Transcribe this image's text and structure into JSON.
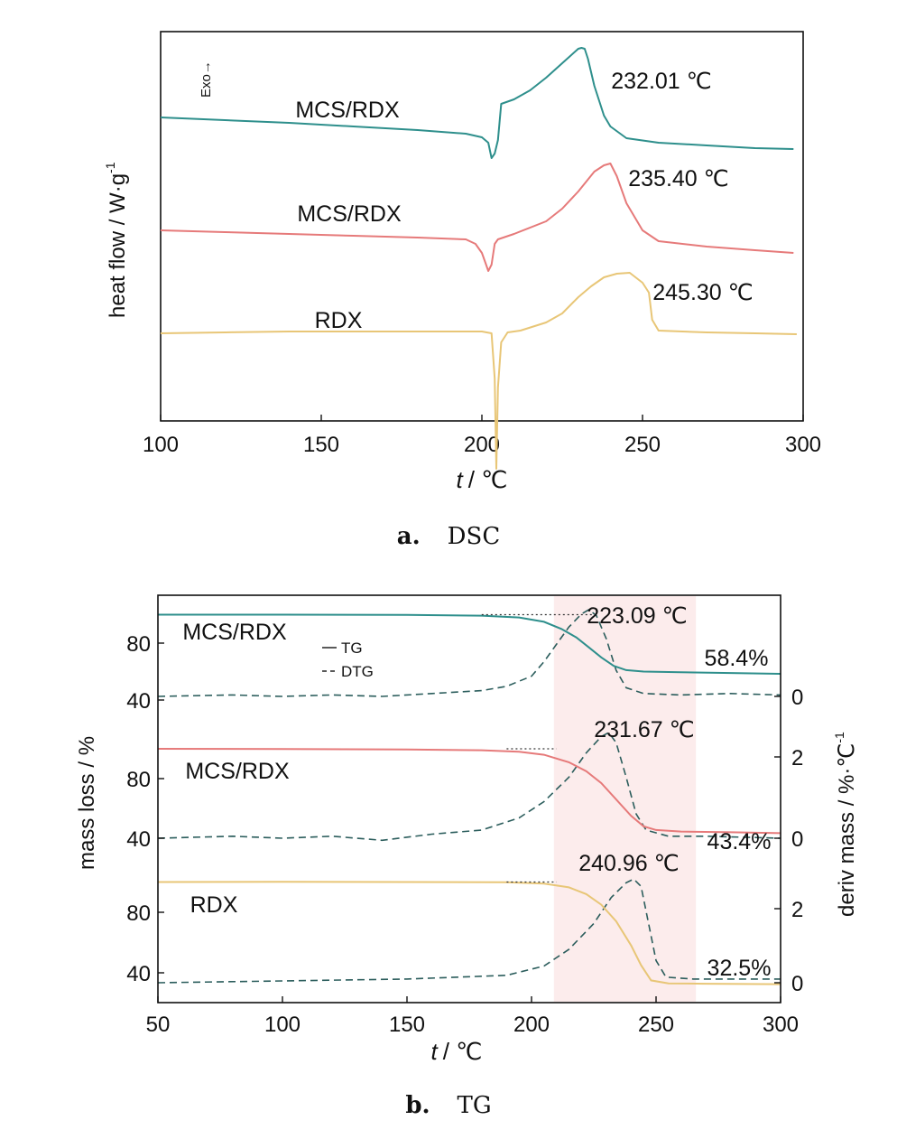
{
  "chart_data": [
    {
      "type": "line",
      "panel_label": "a.",
      "panel_name": "DSC",
      "ylabel": "heat flow / W·g",
      "ylabel_sup": "-1",
      "xlabel_var": "t",
      "xlabel_unit": "/ ℃",
      "exo_label": "Exo→",
      "xlim": [
        100,
        300
      ],
      "xticks": [
        100,
        150,
        200,
        250,
        300
      ],
      "colors": {
        "teal": "#2e8f8c",
        "red": "#e67a7a",
        "yellow": "#e8c677"
      },
      "series": [
        {
          "name": "MCS/RDX",
          "color_key": "teal",
          "peak_label": "232.01 ℃",
          "x": [
            100,
            120,
            140,
            160,
            180,
            195,
            200,
            202,
            203,
            204,
            205,
            206,
            210,
            215,
            220,
            225,
            230,
            231,
            232,
            233,
            235,
            238,
            240,
            245,
            255,
            270,
            285,
            297
          ],
          "y": [
            0.0,
            -0.3,
            -0.6,
            -1.0,
            -1.4,
            -1.8,
            -2.2,
            -2.8,
            -4.5,
            -4.0,
            -2.5,
            1.5,
            2.0,
            3.0,
            4.4,
            6.0,
            7.6,
            7.7,
            7.6,
            6.5,
            3.5,
            0.2,
            -1.0,
            -2.3,
            -2.8,
            -3.1,
            -3.4,
            -3.5
          ]
        },
        {
          "name": "MCS/RDX",
          "color_key": "red",
          "peak_label": "235.40 ℃",
          "x": [
            100,
            120,
            140,
            160,
            180,
            195,
            198,
            200,
            201,
            202,
            203,
            204,
            205,
            210,
            220,
            225,
            230,
            235,
            238,
            240,
            242,
            245,
            250,
            255,
            270,
            285,
            297
          ],
          "y": [
            0.0,
            -0.2,
            -0.4,
            -0.6,
            -0.8,
            -1.0,
            -1.5,
            -2.5,
            -3.5,
            -4.5,
            -3.8,
            -1.5,
            -1.0,
            -0.4,
            1.0,
            2.4,
            4.3,
            6.5,
            7.2,
            7.4,
            6.0,
            3.0,
            0.0,
            -1.2,
            -1.8,
            -2.2,
            -2.5
          ]
        },
        {
          "name": "RDX",
          "color_key": "yellow",
          "peak_label": "245.30 ℃",
          "x": [
            100,
            120,
            140,
            160,
            180,
            200,
            203,
            204,
            204.5,
            205,
            206,
            208,
            212,
            220,
            225,
            230,
            234,
            238,
            242,
            246,
            250,
            252,
            253,
            255,
            270,
            285,
            298
          ],
          "y": [
            0.0,
            0.1,
            0.2,
            0.2,
            0.2,
            0.2,
            0.0,
            -5.0,
            -15.0,
            -6.0,
            -1.0,
            0.1,
            0.3,
            1.2,
            2.2,
            4.0,
            5.2,
            6.2,
            6.6,
            6.7,
            5.6,
            4.5,
            1.5,
            0.3,
            0.1,
            0.0,
            -0.1
          ]
        }
      ]
    },
    {
      "type": "line",
      "panel_label": "b.",
      "panel_name": "TG",
      "ylabel": "mass loss / %",
      "ylabel_right": "deriv mass / %·℃",
      "ylabel_right_sup": "-1",
      "xlabel_var": "t",
      "xlabel_unit": "/ ℃",
      "xlim": [
        50,
        300
      ],
      "xticks": [
        50,
        100,
        150,
        200,
        250,
        300
      ],
      "shaded_region": [
        209,
        266
      ],
      "legend": {
        "tg": "TG",
        "dtg": "DTG"
      },
      "colors": {
        "teal": "#2e8f8c",
        "red": "#e67a7a",
        "yellow": "#e8c677",
        "dtg": "#2b5d5c",
        "shade": "#fcecec"
      },
      "subplots": [
        {
          "name": "MCS/RDX",
          "color_key": "teal",
          "peak_label": "223.09 ℃",
          "residue_label": "58.4%",
          "left_ticks": [
            40,
            80
          ],
          "right_ticks": [
            0
          ],
          "tg": {
            "x": [
              50,
              100,
              150,
              180,
              195,
              205,
              212,
              218,
              223,
              228,
              233,
              238,
              245,
              260,
              280,
              300
            ],
            "y": [
              100.0,
              100.0,
              99.8,
              99.3,
              98.0,
              95.0,
              90.0,
              84.0,
              77.0,
              70.0,
              64.0,
              61.0,
              60.0,
              59.5,
              59.0,
              58.4
            ]
          },
          "dtg": {
            "x": [
              50,
              80,
              100,
              120,
              140,
              160,
              180,
              190,
              200,
              205,
              210,
              215,
              220,
              223,
              226,
              230,
              234,
              238,
              245,
              260,
              280,
              300
            ],
            "y": [
              0.0,
              0.05,
              0.0,
              0.05,
              0.0,
              0.1,
              0.2,
              0.35,
              0.7,
              1.2,
              1.8,
              2.4,
              2.85,
              3.0,
              2.8,
              2.0,
              0.9,
              0.3,
              0.1,
              0.05,
              0.1,
              0.05
            ]
          }
        },
        {
          "name": "MCS/RDX",
          "color_key": "red",
          "peak_label": "231.67 ℃",
          "residue_label": "43.4%",
          "left_ticks": [
            40,
            80
          ],
          "right_ticks": [
            0,
            2
          ],
          "tg": {
            "x": [
              50,
              100,
              150,
              180,
              195,
              205,
              215,
              222,
              228,
              234,
              240,
              245,
              250,
              260,
              280,
              300
            ],
            "y": [
              100.0,
              99.8,
              99.5,
              99.0,
              98.0,
              96.0,
              91.0,
              85.0,
              77.0,
              66.0,
              55.0,
              48.0,
              45.5,
              44.5,
              44.0,
              43.4
            ]
          },
          "dtg": {
            "x": [
              50,
              80,
              100,
              120,
              140,
              160,
              180,
              195,
              205,
              215,
              222,
              228,
              231,
              234,
              238,
              242,
              246,
              255,
              270,
              300
            ],
            "y": [
              0.0,
              0.05,
              0.0,
              0.05,
              -0.05,
              0.1,
              0.2,
              0.5,
              0.9,
              1.5,
              2.1,
              2.5,
              2.6,
              2.35,
              1.5,
              0.6,
              0.2,
              0.05,
              0.05,
              0.0
            ]
          }
        },
        {
          "name": "RDX",
          "color_key": "yellow",
          "peak_label": "240.96 ℃",
          "residue_label": "32.5%",
          "left_ticks": [
            40,
            80
          ],
          "right_ticks": [
            0,
            2
          ],
          "tg": {
            "x": [
              50,
              100,
              150,
              190,
              205,
              215,
              222,
              228,
              234,
              240,
              244,
              248,
              255,
              270,
              300
            ],
            "y": [
              100.0,
              100.2,
              100.0,
              99.8,
              99.0,
              96.5,
              92.0,
              85.0,
              74.0,
              58.0,
              45.0,
              35.0,
              33.0,
              32.8,
              32.5
            ]
          },
          "dtg": {
            "x": [
              50,
              100,
              150,
              190,
              205,
              215,
              225,
              232,
              238,
              241,
              244,
              247,
              250,
              254,
              265,
              300
            ],
            "y": [
              0.0,
              0.05,
              0.1,
              0.2,
              0.45,
              0.9,
              1.6,
              2.3,
              2.7,
              2.8,
              2.6,
              1.6,
              0.6,
              0.15,
              0.1,
              0.1
            ]
          }
        }
      ]
    }
  ]
}
